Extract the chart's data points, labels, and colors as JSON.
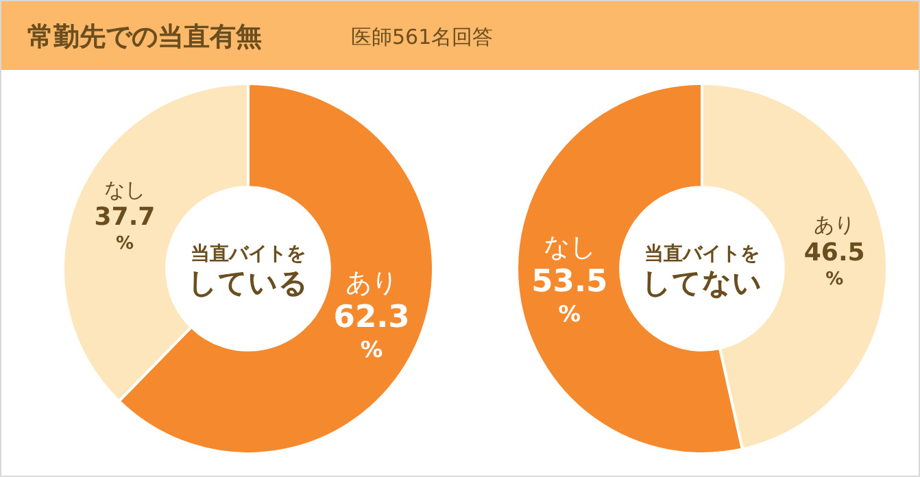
{
  "chart_data": [
    {
      "type": "donut",
      "title": "常勤先での当直有無",
      "subtitle": "医師561名回答",
      "annotations": [
        "当直バイトを",
        "している"
      ],
      "categories": [
        "あり",
        "なし"
      ],
      "values": [
        62.3,
        37.7
      ],
      "colors": [
        "#f5892e",
        "#fde6bc"
      ],
      "value_labels": [
        "62.3%",
        "37.7%"
      ]
    },
    {
      "type": "donut",
      "annotations": [
        "当直バイトを",
        "してない"
      ],
      "categories": [
        "あり",
        "なし"
      ],
      "values": [
        46.5,
        53.5
      ],
      "colors": [
        "#fde6bc",
        "#f5892e"
      ],
      "value_labels": [
        "46.5%",
        "53.5%"
      ]
    }
  ]
}
